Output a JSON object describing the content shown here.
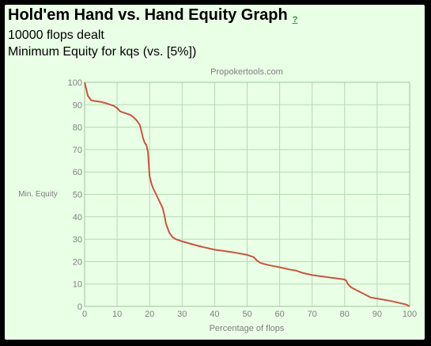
{
  "header": {
    "title": "Hold'em Hand vs. Hand Equity Graph",
    "help_link": "?",
    "flops_dealt": "10000 flops dealt",
    "subtitle": "Minimum Equity for kqs (vs. [5%])"
  },
  "chart_data": {
    "type": "line",
    "watermark": "Propokertools.com",
    "xlabel": "Percentage of flops",
    "ylabel": "Min. Equity",
    "xlim": [
      0,
      100
    ],
    "ylim": [
      0,
      100
    ],
    "x_ticks": [
      0,
      10,
      20,
      30,
      40,
      50,
      60,
      70,
      80,
      90,
      100
    ],
    "y_ticks": [
      0,
      10,
      20,
      30,
      40,
      50,
      60,
      70,
      80,
      90,
      100
    ],
    "grid": true,
    "line_color": "#c8553d",
    "grid_color": "#b7d7b3",
    "series": [
      {
        "x": [
          0,
          0.5,
          1,
          2,
          3,
          5,
          7,
          9,
          10,
          11,
          12,
          14,
          15,
          16,
          17,
          18,
          18.5,
          19,
          19.5,
          20,
          20.5,
          21,
          22,
          23,
          24,
          24.5,
          25,
          26,
          27,
          28,
          30,
          35,
          40,
          45,
          50,
          52,
          53,
          54,
          55,
          57,
          60,
          63,
          65,
          67,
          70,
          75,
          80,
          80.5,
          81,
          82,
          84,
          86,
          88,
          90,
          92,
          95,
          97,
          99,
          100
        ],
        "y": [
          100,
          97,
          94,
          92,
          91.7,
          91.3,
          90.5,
          89.5,
          88.5,
          87,
          86.5,
          85.5,
          84.5,
          83,
          81,
          75,
          73,
          72,
          69,
          58,
          55,
          53,
          50,
          47,
          44,
          41,
          37,
          33,
          31,
          30,
          29,
          27,
          25.3,
          24.3,
          23,
          22,
          20.5,
          19.5,
          19,
          18.3,
          17.5,
          16.5,
          16,
          15,
          14,
          13,
          12,
          11.5,
          10,
          8.5,
          7,
          5.5,
          4,
          3.5,
          3,
          2.2,
          1.5,
          0.8,
          0
        ]
      }
    ]
  }
}
